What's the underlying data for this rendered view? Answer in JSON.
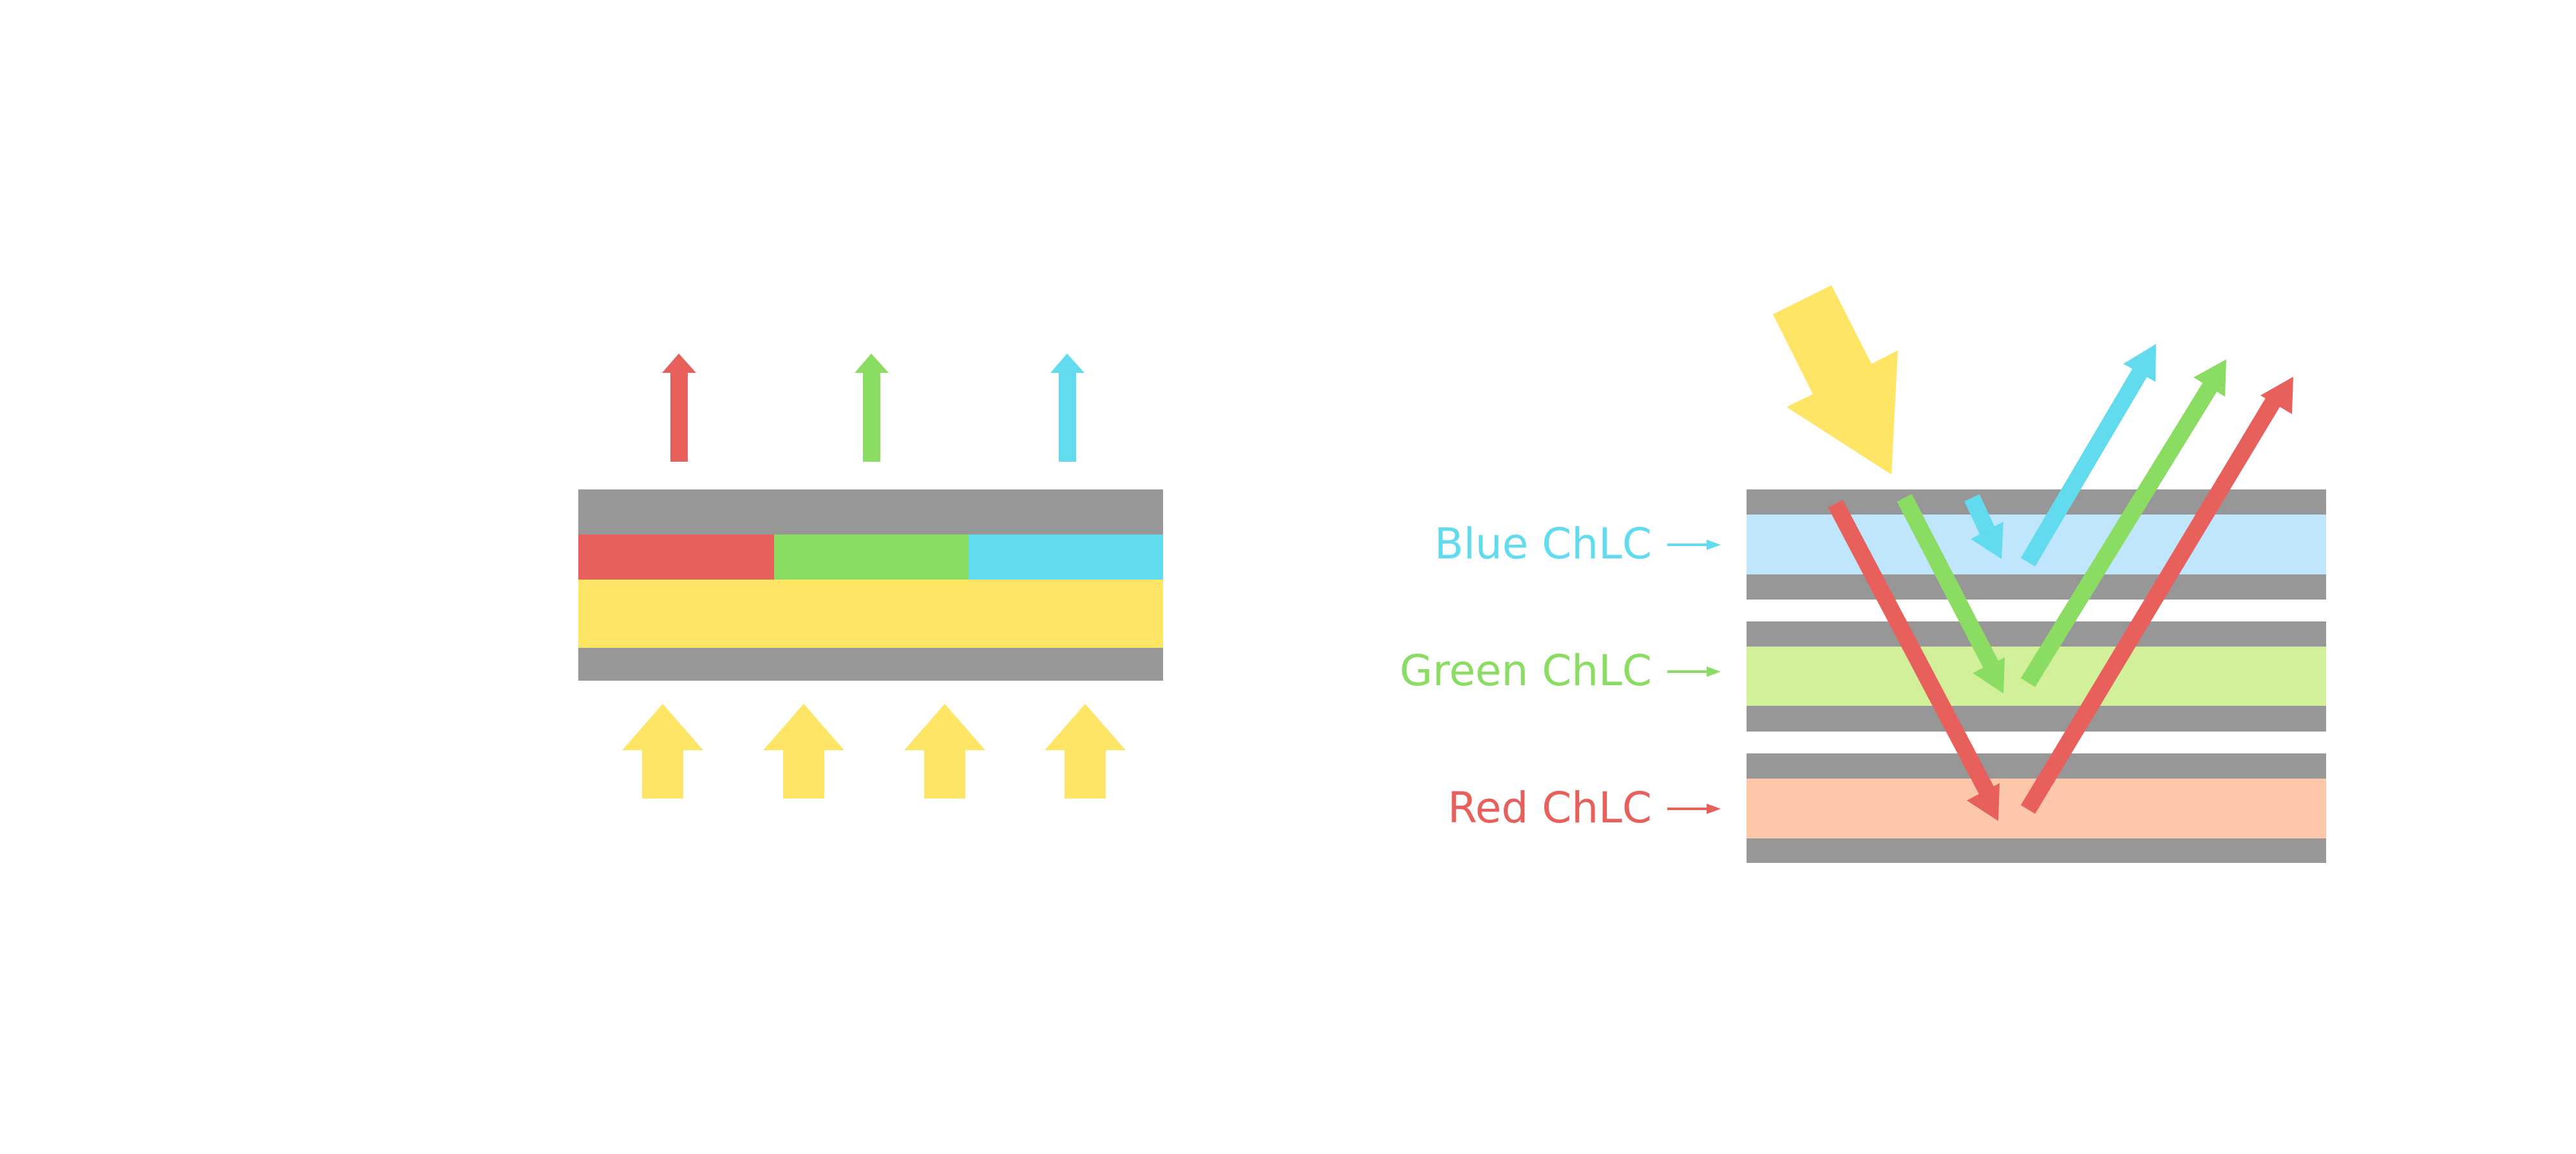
{
  "colors": {
    "gray": "#979797",
    "red": "#e7605c",
    "green": "#8adc63",
    "blue": "#63dbee",
    "yellow": "#fee566",
    "blue_layer": "#bfe6fd",
    "green_layer": "#d2ef9a",
    "red_layer": "#fdc8a9"
  },
  "right_diagram": {
    "labels": [
      {
        "text": "Blue ChLC",
        "color": "#63dbee"
      },
      {
        "text": "Green ChLC",
        "color": "#8adc63"
      },
      {
        "text": "Red ChLC",
        "color": "#e7605c"
      }
    ]
  }
}
